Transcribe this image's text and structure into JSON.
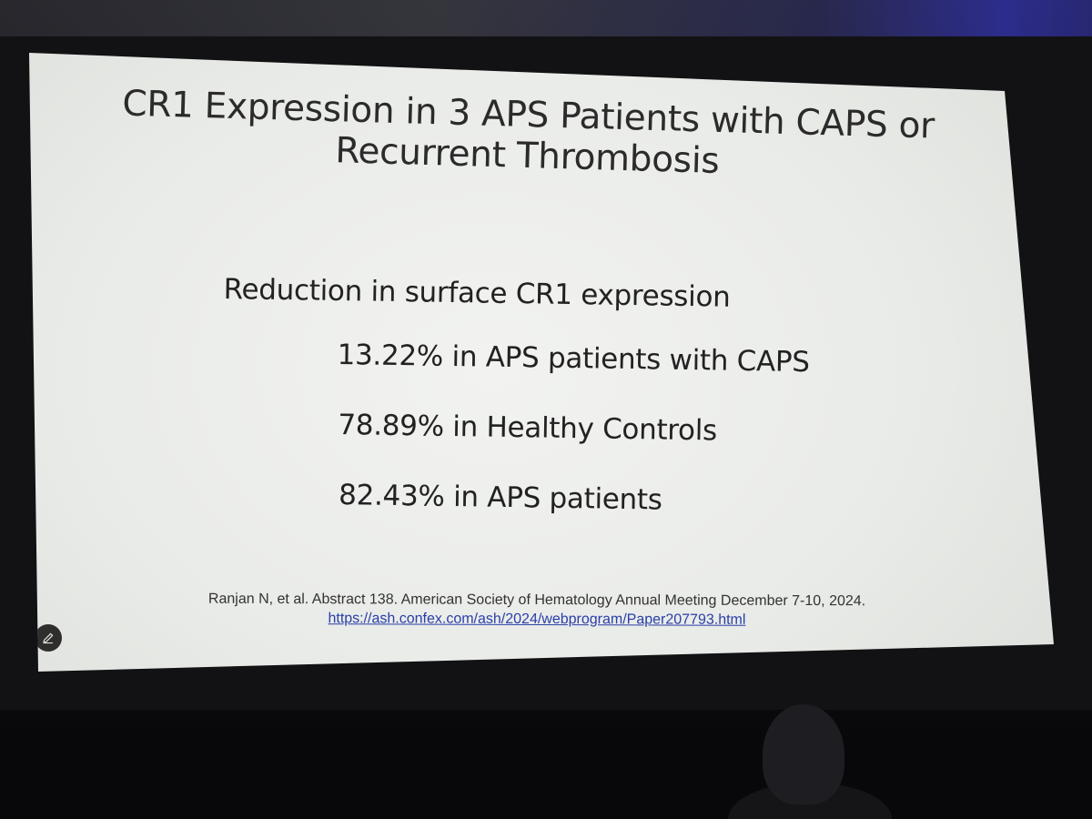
{
  "slide": {
    "title_line1": "CR1 Expression in 3 APS Patients with CAPS or",
    "title_line2": "Recurrent Thrombosis",
    "heading": "Reduction in surface CR1 expression",
    "stats": [
      "13.22% in APS patients with CAPS",
      "78.89% in Healthy Controls",
      "82.43% in APS patients"
    ],
    "citation": "Ranjan N, et al. Abstract 138. American Society of Hematology Annual Meeting December 7-10, 2024.",
    "citation_url": "https://ash.confex.com/ash/2024/webprogram/Paper207793.html"
  },
  "icons": {
    "annotation_tool": "pen-icon"
  }
}
